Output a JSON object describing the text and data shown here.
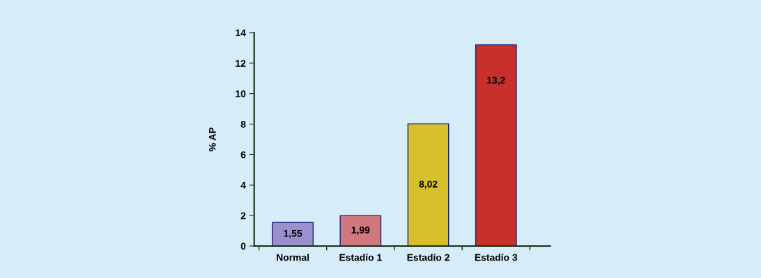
{
  "chart_data": {
    "type": "bar",
    "ylabel": "% AP",
    "categories": [
      "Normal",
      "Estadío 1",
      "Estadío 2",
      "Estadío 3"
    ],
    "values": [
      1.55,
      1.99,
      8.02,
      13.2
    ],
    "colors": [
      "#9a90d0",
      "#d07880",
      "#d8c02c",
      "#c8302c"
    ],
    "value_labels": [
      "1,55",
      "1,99",
      "8,02",
      "13,2"
    ],
    "ylim": [
      0,
      14
    ],
    "yticks": [
      0,
      2,
      4,
      6,
      8,
      10,
      12,
      14
    ],
    "grid": false,
    "legend": false
  }
}
